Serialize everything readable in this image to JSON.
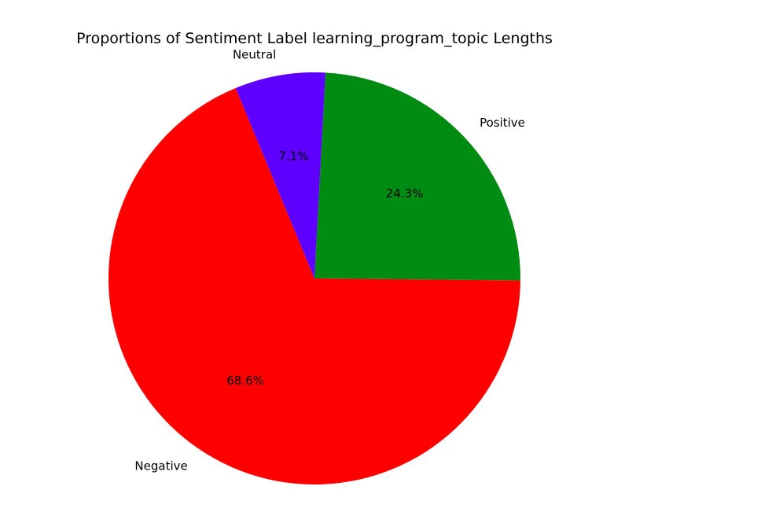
{
  "chart_data": {
    "type": "pie",
    "title": "Proportions of Sentiment Label learning_program_topic Lengths",
    "slices": [
      {
        "label": "Negative",
        "value": 68.6,
        "pct_label": "68.6%",
        "color": "#ff0000"
      },
      {
        "label": "Positive",
        "value": 24.3,
        "pct_label": "24.3%",
        "color": "#008b12"
      },
      {
        "label": "Neutral",
        "value": 7.1,
        "pct_label": "7.1%",
        "color": "#5d00ff"
      }
    ],
    "start_angle_deg": 112.5,
    "direction": "counterclockwise",
    "legend": "none"
  }
}
